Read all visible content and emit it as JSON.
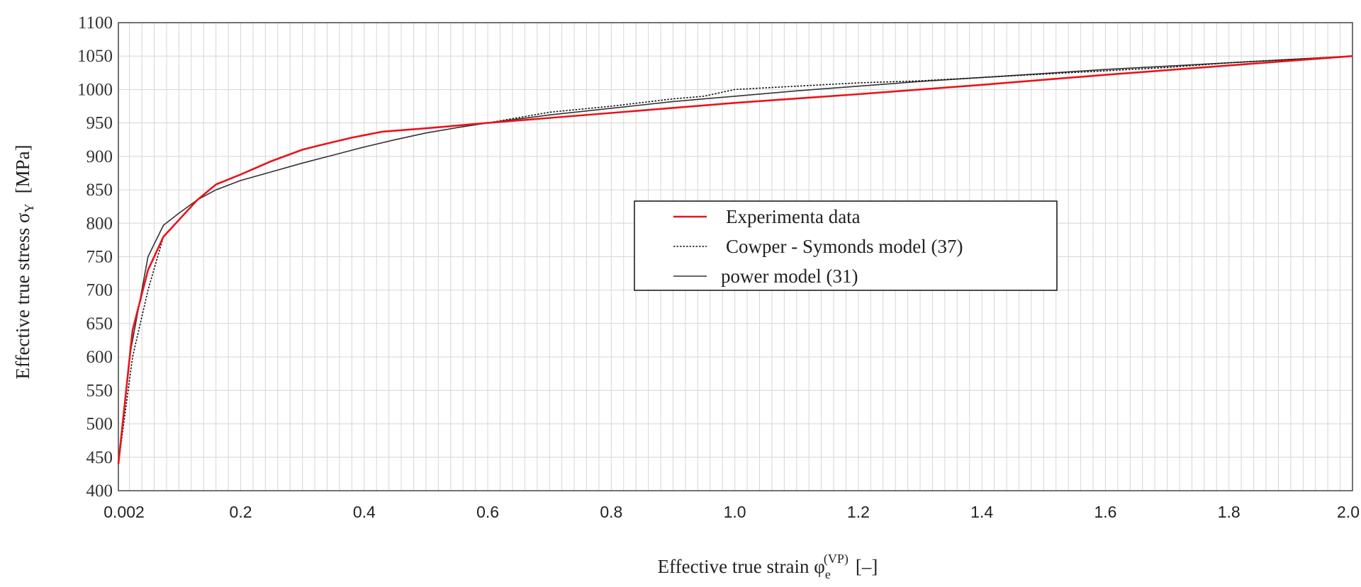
{
  "chart_data": {
    "type": "line",
    "title": "",
    "xlabel": {
      "main": "Effective true strain φ",
      "subscript": "e",
      "superscript": "(VP)",
      "unit": "[–]"
    },
    "ylabel": {
      "main": "Effective true stress  σ",
      "subscript": "Y",
      "unit": "[MPa]"
    },
    "xlim": [
      0.002,
      2.0
    ],
    "ylim": [
      400,
      1100
    ],
    "x_ticks": [
      {
        "value": 0.002,
        "label": "0.002"
      },
      {
        "value": 0.2,
        "label": "0.2"
      },
      {
        "value": 0.4,
        "label": "0.4"
      },
      {
        "value": 0.6,
        "label": "0.6"
      },
      {
        "value": 0.8,
        "label": "0.8"
      },
      {
        "value": 1.0,
        "label": "1.0"
      },
      {
        "value": 1.2,
        "label": "1.2"
      },
      {
        "value": 1.4,
        "label": "1.4"
      },
      {
        "value": 1.6,
        "label": "1.6"
      },
      {
        "value": 1.8,
        "label": "1.8"
      },
      {
        "value": 2.0,
        "label": "2.0"
      }
    ],
    "y_ticks": [
      400,
      450,
      500,
      550,
      600,
      650,
      700,
      750,
      800,
      850,
      900,
      950,
      1000,
      1050,
      1100
    ],
    "x_minor_step": 0.02,
    "grid": true,
    "legend": "center-right",
    "series": [
      {
        "name": "Experimenta data",
        "color": "#e8141c",
        "dash": "solid",
        "points": [
          [
            0.002,
            440
          ],
          [
            0.025,
            640
          ],
          [
            0.05,
            730
          ],
          [
            0.075,
            780
          ],
          [
            0.1,
            805
          ],
          [
            0.13,
            835
          ],
          [
            0.16,
            858
          ],
          [
            0.2,
            873
          ],
          [
            0.25,
            893
          ],
          [
            0.3,
            910
          ],
          [
            0.33,
            917
          ],
          [
            0.38,
            928
          ],
          [
            0.43,
            937
          ],
          [
            0.5,
            942
          ],
          [
            0.6,
            950
          ],
          [
            0.8,
            965
          ],
          [
            1.0,
            980
          ],
          [
            1.2,
            993
          ],
          [
            1.4,
            1007
          ],
          [
            1.6,
            1022
          ],
          [
            1.8,
            1036
          ],
          [
            2.0,
            1050
          ]
        ]
      },
      {
        "name": "Cowper - Symonds model (37)",
        "color": "#111111",
        "dash": "dotted",
        "points": [
          [
            0.002,
            440
          ],
          [
            0.025,
            600
          ],
          [
            0.05,
            700
          ],
          [
            0.075,
            780
          ],
          [
            0.1,
            805
          ],
          [
            0.13,
            835
          ],
          [
            0.16,
            858
          ],
          [
            0.2,
            873
          ],
          [
            0.25,
            893
          ],
          [
            0.3,
            910
          ],
          [
            0.33,
            917
          ],
          [
            0.38,
            928
          ],
          [
            0.43,
            937
          ],
          [
            0.5,
            942
          ],
          [
            0.6,
            950
          ],
          [
            0.7,
            966
          ],
          [
            0.8,
            975
          ],
          [
            0.9,
            986
          ],
          [
            0.95,
            990
          ],
          [
            1.0,
            1000
          ],
          [
            1.1,
            1005
          ],
          [
            1.2,
            1010
          ],
          [
            1.3,
            1013
          ],
          [
            1.4,
            1018
          ],
          [
            1.5,
            1023
          ],
          [
            1.6,
            1028
          ],
          [
            1.7,
            1033
          ],
          [
            1.8,
            1040
          ],
          [
            1.9,
            1045
          ],
          [
            2.0,
            1050
          ]
        ]
      },
      {
        "name": "power model (31)",
        "color": "#333333",
        "dash": "solid",
        "points": [
          [
            0.002,
            440
          ],
          [
            0.02,
            600
          ],
          [
            0.05,
            750
          ],
          [
            0.075,
            797
          ],
          [
            0.1,
            815
          ],
          [
            0.13,
            835
          ],
          [
            0.16,
            850
          ],
          [
            0.2,
            864
          ],
          [
            0.25,
            877
          ],
          [
            0.3,
            890
          ],
          [
            0.35,
            902
          ],
          [
            0.4,
            914
          ],
          [
            0.45,
            925
          ],
          [
            0.5,
            935
          ],
          [
            0.55,
            943
          ],
          [
            0.6,
            950
          ],
          [
            0.7,
            962
          ],
          [
            0.8,
            972
          ],
          [
            0.9,
            982
          ],
          [
            1.0,
            990
          ],
          [
            1.1,
            998
          ],
          [
            1.2,
            1005
          ],
          [
            1.3,
            1012
          ],
          [
            1.4,
            1018
          ],
          [
            1.5,
            1024
          ],
          [
            1.6,
            1030
          ],
          [
            1.7,
            1035
          ],
          [
            1.8,
            1040
          ],
          [
            1.9,
            1045
          ],
          [
            2.0,
            1050
          ]
        ]
      }
    ]
  }
}
